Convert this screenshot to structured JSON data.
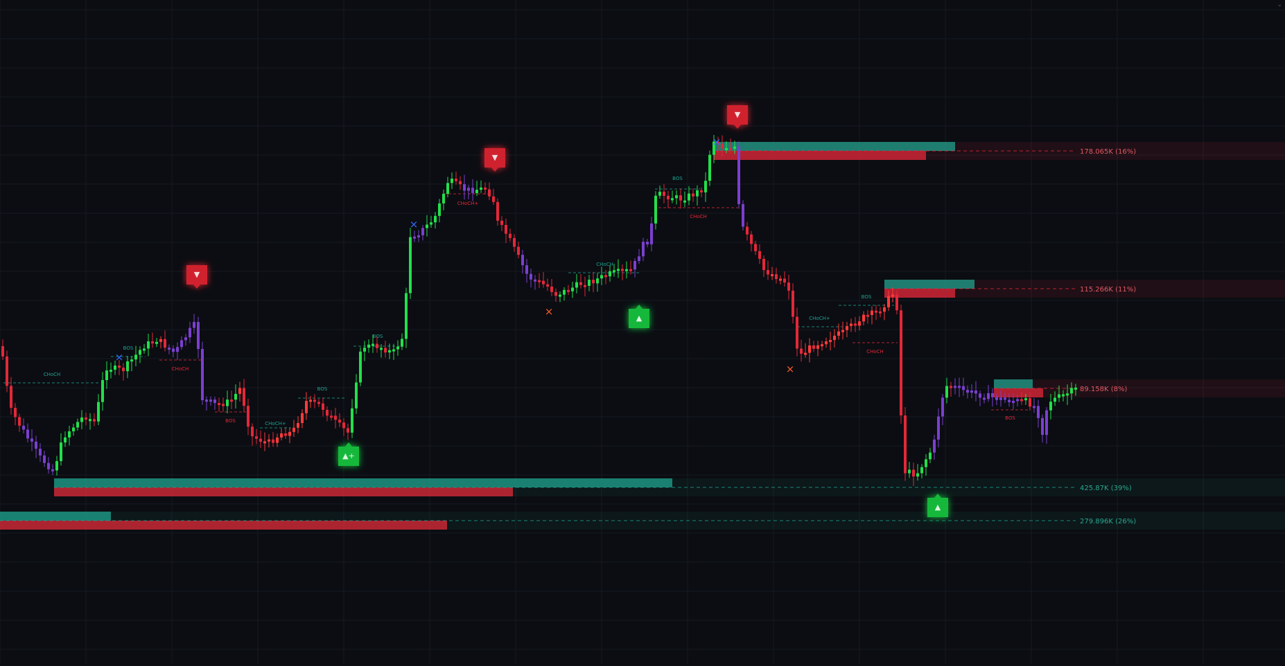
{
  "chart_data": {
    "type": "candlestick",
    "title": "",
    "colors": {
      "background": "#0b0d12",
      "grid": "#161a22",
      "bullish": "#22e04a",
      "bearish": "#e3283a",
      "neutral": "#7b3fd0",
      "supply_zone": "#e3283a",
      "demand_zone": "#1fa38f",
      "swing_high_marker": "#2f6cff",
      "swing_low_marker": "#ff5a2a"
    },
    "price_levels": [
      {
        "id": "lvl-178",
        "label": "178.065K (16%)",
        "side": "supply"
      },
      {
        "id": "lvl-115",
        "label": "115.266K (11%)",
        "side": "supply"
      },
      {
        "id": "lvl-89",
        "label": "89.158K (8%)",
        "side": "supply"
      },
      {
        "id": "lvl-425",
        "label": "425.87K (39%)",
        "side": "demand"
      },
      {
        "id": "lvl-279",
        "label": "279.896K (26%)",
        "side": "demand"
      }
    ],
    "structure_labels": [
      {
        "text": "CHoCH",
        "color": "demand"
      },
      {
        "text": "BOS",
        "color": "demand"
      },
      {
        "text": "CHoCH",
        "color": "supply"
      },
      {
        "text": "BOS",
        "color": "supply"
      },
      {
        "text": "CHoCH+",
        "color": "demand"
      },
      {
        "text": "BOS",
        "color": "demand"
      },
      {
        "text": "BOS",
        "color": "demand"
      },
      {
        "text": "CHoCH+",
        "color": "supply"
      },
      {
        "text": "CHoCH",
        "color": "demand"
      },
      {
        "text": "BOS",
        "color": "demand"
      },
      {
        "text": "CHoCH",
        "color": "supply"
      },
      {
        "text": "CHoCH+",
        "color": "demand"
      },
      {
        "text": "BOS",
        "color": "demand"
      },
      {
        "text": "CHoCH",
        "color": "supply"
      },
      {
        "text": "BOS",
        "color": "supply"
      }
    ],
    "signals": [
      {
        "type": "sell",
        "glyph": "▼"
      },
      {
        "type": "sell",
        "glyph": "▼"
      },
      {
        "type": "sell",
        "glyph": "▼"
      },
      {
        "type": "buy",
        "glyph": "▲+"
      },
      {
        "type": "buy",
        "glyph": "▲"
      },
      {
        "type": "buy",
        "glyph": "▲"
      }
    ],
    "swing_markers": [
      {
        "type": "swing-high",
        "glyph": "×"
      },
      {
        "type": "swing-high",
        "glyph": "×"
      },
      {
        "type": "swing-high",
        "glyph": "×"
      },
      {
        "type": "swing-low",
        "glyph": "×"
      },
      {
        "type": "swing-low",
        "glyph": "×"
      }
    ]
  },
  "corner_glyph": "⌄"
}
